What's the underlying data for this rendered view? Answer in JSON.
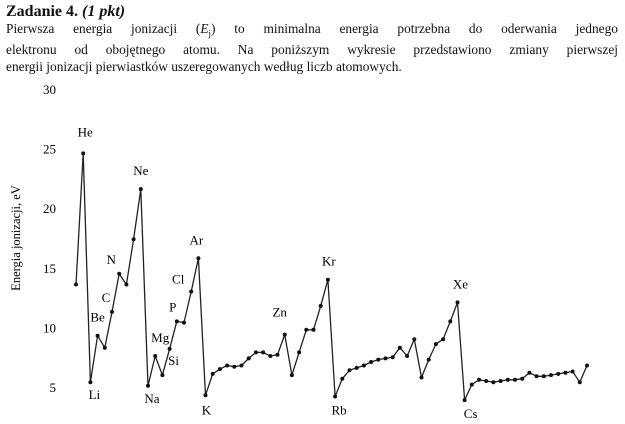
{
  "heading": {
    "number": "Zadanie 4.",
    "points": "(1 pkt)"
  },
  "paragraph": {
    "line1_start": "Pierwsza energia jonizacji (",
    "symbol_E": "E",
    "symbol_sub": "j",
    "line1_end": ") to minimalna energia potrzebna do oderwania jednego",
    "line2": "elektronu od obojętnego atomu. Na poniższym wykresie przedstawiono zmiany pierwszej",
    "line3": "energii jonizacji pierwiastków uszeregowanych według liczb atomowych."
  },
  "chart_data": {
    "type": "line",
    "ylabel": "Energia jonizacji, eV",
    "xlabel": "",
    "title": "",
    "ylim": [
      5,
      30
    ],
    "yticks": [
      "5",
      "10",
      "15",
      "20",
      "25",
      "30"
    ],
    "x": [
      1,
      2,
      3,
      4,
      5,
      6,
      7,
      8,
      9,
      10,
      11,
      12,
      13,
      14,
      15,
      16,
      17,
      18,
      19,
      20,
      21,
      22,
      23,
      24,
      25,
      26,
      27,
      28,
      29,
      30,
      31,
      32,
      33,
      34,
      35,
      36,
      37,
      38,
      39,
      40,
      41,
      42,
      43,
      44,
      45,
      46,
      47,
      48,
      49,
      50,
      51,
      52,
      53,
      54,
      55,
      56,
      57,
      58,
      59,
      60,
      61,
      62,
      63,
      64,
      65,
      66,
      67,
      68,
      69,
      70,
      71,
      72
    ],
    "y": [
      13.6,
      24.6,
      5.4,
      9.3,
      8.3,
      11.3,
      14.5,
      13.6,
      17.4,
      21.6,
      5.1,
      7.6,
      6.0,
      8.2,
      10.5,
      10.4,
      13.0,
      15.8,
      4.3,
      6.1,
      6.5,
      6.8,
      6.7,
      6.8,
      7.4,
      7.9,
      7.9,
      7.6,
      7.7,
      9.4,
      6.0,
      7.9,
      9.8,
      9.8,
      11.8,
      14.0,
      4.2,
      5.7,
      6.4,
      6.6,
      6.8,
      7.1,
      7.3,
      7.4,
      7.5,
      8.3,
      7.6,
      9.0,
      5.8,
      7.3,
      8.6,
      9.0,
      10.5,
      12.1,
      3.9,
      5.2,
      5.6,
      5.5,
      5.4,
      5.5,
      5.6,
      5.6,
      5.7,
      6.2,
      5.9,
      5.9,
      6.0,
      6.1,
      6.2,
      6.3,
      5.4,
      6.8
    ],
    "element_labels": [
      {
        "atomic_number": 2,
        "symbol": "He"
      },
      {
        "atomic_number": 3,
        "symbol": "Li"
      },
      {
        "atomic_number": 4,
        "symbol": "Be"
      },
      {
        "atomic_number": 6,
        "symbol": "C"
      },
      {
        "atomic_number": 7,
        "symbol": "N"
      },
      {
        "atomic_number": 10,
        "symbol": "Ne"
      },
      {
        "atomic_number": 11,
        "symbol": "Na"
      },
      {
        "atomic_number": 12,
        "symbol": "Mg"
      },
      {
        "atomic_number": 14,
        "symbol": "Si"
      },
      {
        "atomic_number": 15,
        "symbol": "P"
      },
      {
        "atomic_number": 17,
        "symbol": "Cl"
      },
      {
        "atomic_number": 18,
        "symbol": "Ar"
      },
      {
        "atomic_number": 19,
        "symbol": "K"
      },
      {
        "atomic_number": 30,
        "symbol": "Zn"
      },
      {
        "atomic_number": 36,
        "symbol": "Kr"
      },
      {
        "atomic_number": 37,
        "symbol": "Rb"
      },
      {
        "atomic_number": 54,
        "symbol": "Xe"
      },
      {
        "atomic_number": 55,
        "symbol": "Cs"
      }
    ],
    "grid": false,
    "legend": "none"
  }
}
